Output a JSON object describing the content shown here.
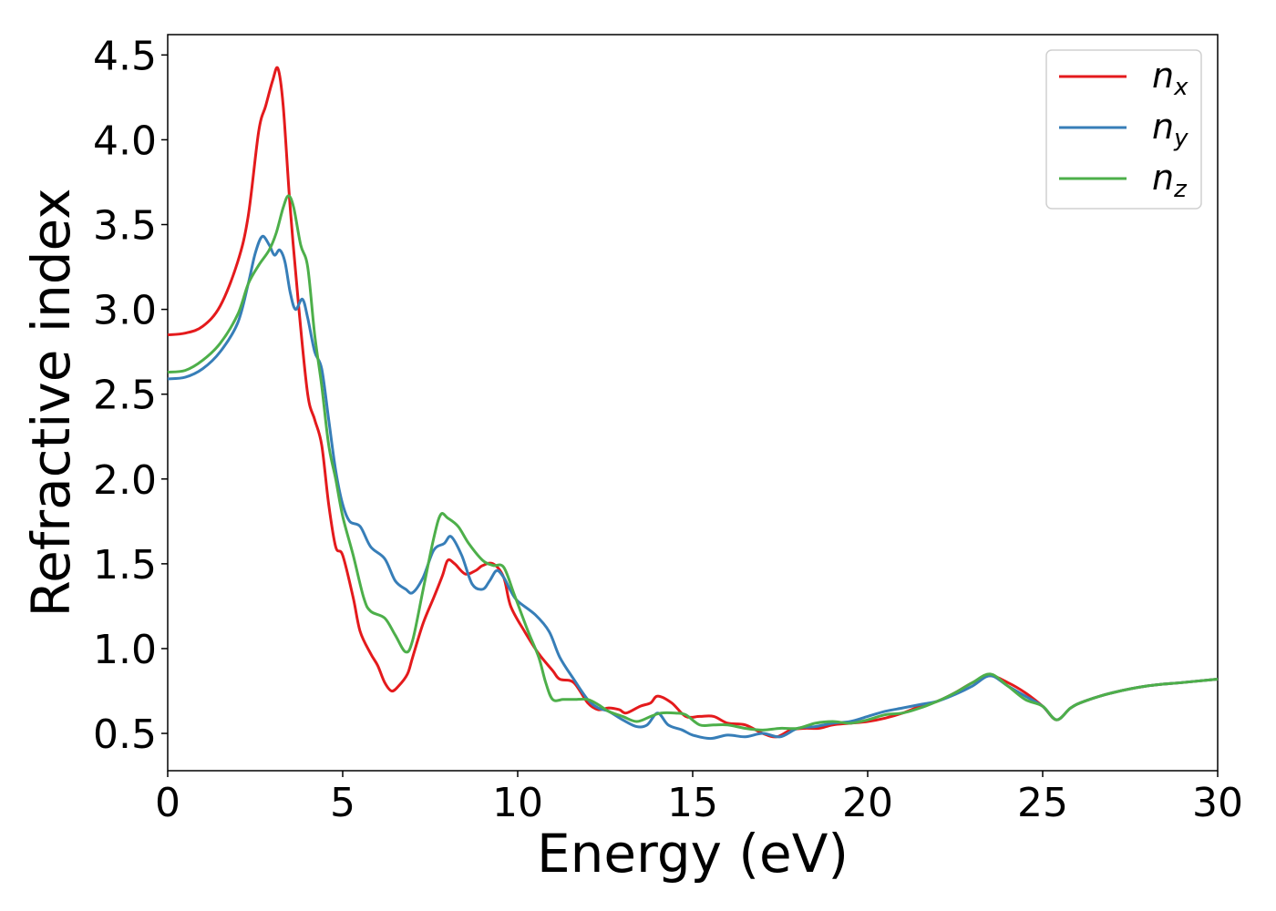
{
  "chart_data": {
    "type": "line",
    "xlabel": "Energy (eV)",
    "ylabel": "Refractive index",
    "xlim": [
      0,
      30
    ],
    "ylim": [
      0.28,
      4.62
    ],
    "xticks": [
      0,
      5,
      10,
      15,
      20,
      25,
      30
    ],
    "xtick_labels": [
      "0",
      "5",
      "10",
      "15",
      "20",
      "25",
      "30"
    ],
    "yticks": [
      0.5,
      1.0,
      1.5,
      2.0,
      2.5,
      3.0,
      3.5,
      4.0,
      4.5
    ],
    "ytick_labels": [
      "0.5",
      "1.0",
      "1.5",
      "2.0",
      "2.5",
      "3.0",
      "3.5",
      "4.0",
      "4.5"
    ],
    "grid": false,
    "legend_position": "top-right",
    "series": [
      {
        "name": "n",
        "subscript": "x",
        "color": "#e41a1c",
        "points": [
          [
            0,
            2.85
          ],
          [
            0.5,
            2.86
          ],
          [
            1.0,
            2.9
          ],
          [
            1.5,
            3.02
          ],
          [
            2.0,
            3.28
          ],
          [
            2.3,
            3.55
          ],
          [
            2.6,
            4.05
          ],
          [
            2.8,
            4.2
          ],
          [
            3.0,
            4.35
          ],
          [
            3.15,
            4.42
          ],
          [
            3.3,
            4.2
          ],
          [
            3.5,
            3.6
          ],
          [
            3.75,
            3.0
          ],
          [
            4.0,
            2.5
          ],
          [
            4.2,
            2.35
          ],
          [
            4.4,
            2.2
          ],
          [
            4.6,
            1.85
          ],
          [
            4.8,
            1.6
          ],
          [
            5.0,
            1.55
          ],
          [
            5.3,
            1.3
          ],
          [
            5.5,
            1.1
          ],
          [
            5.8,
            0.97
          ],
          [
            6.0,
            0.9
          ],
          [
            6.2,
            0.8
          ],
          [
            6.4,
            0.75
          ],
          [
            6.6,
            0.78
          ],
          [
            6.85,
            0.85
          ],
          [
            7.0,
            0.95
          ],
          [
            7.3,
            1.15
          ],
          [
            7.6,
            1.3
          ],
          [
            7.85,
            1.43
          ],
          [
            8.0,
            1.52
          ],
          [
            8.2,
            1.5
          ],
          [
            8.5,
            1.44
          ],
          [
            8.8,
            1.46
          ],
          [
            9.0,
            1.49
          ],
          [
            9.3,
            1.5
          ],
          [
            9.6,
            1.42
          ],
          [
            9.8,
            1.25
          ],
          [
            10.2,
            1.1
          ],
          [
            10.6,
            0.97
          ],
          [
            11.0,
            0.87
          ],
          [
            11.2,
            0.82
          ],
          [
            11.6,
            0.8
          ],
          [
            12.0,
            0.68
          ],
          [
            12.3,
            0.64
          ],
          [
            12.6,
            0.65
          ],
          [
            12.9,
            0.64
          ],
          [
            13.1,
            0.62
          ],
          [
            13.5,
            0.66
          ],
          [
            13.8,
            0.68
          ],
          [
            14.0,
            0.72
          ],
          [
            14.4,
            0.68
          ],
          [
            14.8,
            0.6
          ],
          [
            15.2,
            0.6
          ],
          [
            15.6,
            0.6
          ],
          [
            16.0,
            0.56
          ],
          [
            16.5,
            0.55
          ],
          [
            17.0,
            0.5
          ],
          [
            17.4,
            0.48
          ],
          [
            17.8,
            0.52
          ],
          [
            18.2,
            0.53
          ],
          [
            18.6,
            0.53
          ],
          [
            19.0,
            0.55
          ],
          [
            19.5,
            0.56
          ],
          [
            20.0,
            0.57
          ],
          [
            20.5,
            0.59
          ],
          [
            21.0,
            0.62
          ],
          [
            21.5,
            0.66
          ],
          [
            22.0,
            0.69
          ],
          [
            22.5,
            0.74
          ],
          [
            23.0,
            0.8
          ],
          [
            23.5,
            0.84
          ],
          [
            24.0,
            0.8
          ],
          [
            24.5,
            0.74
          ],
          [
            25.0,
            0.66
          ],
          [
            25.4,
            0.58
          ],
          [
            25.8,
            0.65
          ],
          [
            26.2,
            0.69
          ],
          [
            27.0,
            0.74
          ],
          [
            28.0,
            0.78
          ],
          [
            29.0,
            0.8
          ],
          [
            30.0,
            0.82
          ]
        ]
      },
      {
        "name": "n",
        "subscript": "y",
        "color": "#377eb8",
        "points": [
          [
            0,
            2.59
          ],
          [
            0.5,
            2.6
          ],
          [
            1.0,
            2.65
          ],
          [
            1.5,
            2.75
          ],
          [
            2.0,
            2.92
          ],
          [
            2.3,
            3.15
          ],
          [
            2.5,
            3.33
          ],
          [
            2.7,
            3.43
          ],
          [
            2.9,
            3.38
          ],
          [
            3.05,
            3.32
          ],
          [
            3.2,
            3.35
          ],
          [
            3.35,
            3.28
          ],
          [
            3.5,
            3.1
          ],
          [
            3.65,
            3.0
          ],
          [
            3.85,
            3.06
          ],
          [
            4.0,
            2.95
          ],
          [
            4.2,
            2.75
          ],
          [
            4.4,
            2.65
          ],
          [
            4.6,
            2.35
          ],
          [
            4.8,
            2.05
          ],
          [
            5.0,
            1.85
          ],
          [
            5.2,
            1.75
          ],
          [
            5.5,
            1.72
          ],
          [
            5.8,
            1.6
          ],
          [
            6.2,
            1.53
          ],
          [
            6.5,
            1.4
          ],
          [
            6.8,
            1.35
          ],
          [
            7.0,
            1.33
          ],
          [
            7.3,
            1.42
          ],
          [
            7.6,
            1.58
          ],
          [
            7.9,
            1.62
          ],
          [
            8.1,
            1.66
          ],
          [
            8.4,
            1.55
          ],
          [
            8.7,
            1.38
          ],
          [
            9.0,
            1.35
          ],
          [
            9.2,
            1.4
          ],
          [
            9.4,
            1.46
          ],
          [
            9.6,
            1.42
          ],
          [
            9.8,
            1.34
          ],
          [
            10.0,
            1.28
          ],
          [
            10.5,
            1.2
          ],
          [
            10.9,
            1.1
          ],
          [
            11.2,
            0.95
          ],
          [
            11.6,
            0.82
          ],
          [
            12.0,
            0.7
          ],
          [
            12.3,
            0.65
          ],
          [
            12.6,
            0.63
          ],
          [
            13.0,
            0.58
          ],
          [
            13.4,
            0.54
          ],
          [
            13.7,
            0.55
          ],
          [
            14.0,
            0.62
          ],
          [
            14.3,
            0.55
          ],
          [
            14.7,
            0.52
          ],
          [
            15.0,
            0.49
          ],
          [
            15.5,
            0.47
          ],
          [
            16.0,
            0.49
          ],
          [
            16.5,
            0.48
          ],
          [
            17.0,
            0.5
          ],
          [
            17.5,
            0.48
          ],
          [
            18.0,
            0.53
          ],
          [
            18.5,
            0.54
          ],
          [
            19.0,
            0.56
          ],
          [
            19.5,
            0.57
          ],
          [
            20.0,
            0.6
          ],
          [
            20.5,
            0.63
          ],
          [
            21.0,
            0.65
          ],
          [
            21.5,
            0.67
          ],
          [
            22.0,
            0.69
          ],
          [
            22.5,
            0.73
          ],
          [
            23.0,
            0.78
          ],
          [
            23.5,
            0.84
          ],
          [
            24.0,
            0.78
          ],
          [
            24.5,
            0.72
          ],
          [
            25.0,
            0.66
          ],
          [
            25.4,
            0.58
          ],
          [
            25.8,
            0.65
          ],
          [
            26.2,
            0.69
          ],
          [
            27.0,
            0.74
          ],
          [
            28.0,
            0.78
          ],
          [
            29.0,
            0.8
          ],
          [
            30.0,
            0.82
          ]
        ]
      },
      {
        "name": "n",
        "subscript": "z",
        "color": "#4daf4a",
        "points": [
          [
            0,
            2.63
          ],
          [
            0.5,
            2.64
          ],
          [
            1.0,
            2.7
          ],
          [
            1.5,
            2.8
          ],
          [
            2.0,
            2.97
          ],
          [
            2.3,
            3.15
          ],
          [
            2.6,
            3.26
          ],
          [
            2.9,
            3.35
          ],
          [
            3.1,
            3.45
          ],
          [
            3.3,
            3.6
          ],
          [
            3.45,
            3.67
          ],
          [
            3.6,
            3.6
          ],
          [
            3.8,
            3.38
          ],
          [
            4.0,
            3.25
          ],
          [
            4.2,
            2.85
          ],
          [
            4.4,
            2.55
          ],
          [
            4.6,
            2.2
          ],
          [
            4.8,
            2.0
          ],
          [
            5.0,
            1.78
          ],
          [
            5.3,
            1.55
          ],
          [
            5.6,
            1.3
          ],
          [
            5.8,
            1.22
          ],
          [
            6.2,
            1.18
          ],
          [
            6.5,
            1.08
          ],
          [
            6.8,
            0.98
          ],
          [
            7.0,
            1.05
          ],
          [
            7.3,
            1.35
          ],
          [
            7.6,
            1.65
          ],
          [
            7.8,
            1.79
          ],
          [
            8.0,
            1.77
          ],
          [
            8.3,
            1.72
          ],
          [
            8.6,
            1.62
          ],
          [
            9.0,
            1.52
          ],
          [
            9.3,
            1.49
          ],
          [
            9.6,
            1.48
          ],
          [
            9.9,
            1.32
          ],
          [
            10.3,
            1.1
          ],
          [
            10.6,
            0.95
          ],
          [
            10.8,
            0.8
          ],
          [
            11.0,
            0.7
          ],
          [
            11.3,
            0.7
          ],
          [
            11.6,
            0.7
          ],
          [
            12.0,
            0.7
          ],
          [
            12.3,
            0.67
          ],
          [
            12.6,
            0.63
          ],
          [
            13.0,
            0.6
          ],
          [
            13.4,
            0.57
          ],
          [
            13.8,
            0.6
          ],
          [
            14.1,
            0.62
          ],
          [
            14.5,
            0.62
          ],
          [
            14.8,
            0.61
          ],
          [
            15.2,
            0.55
          ],
          [
            15.6,
            0.55
          ],
          [
            16.0,
            0.55
          ],
          [
            16.5,
            0.53
          ],
          [
            17.0,
            0.52
          ],
          [
            17.5,
            0.53
          ],
          [
            18.0,
            0.53
          ],
          [
            18.5,
            0.56
          ],
          [
            19.0,
            0.57
          ],
          [
            19.5,
            0.56
          ],
          [
            20.0,
            0.58
          ],
          [
            20.5,
            0.61
          ],
          [
            21.0,
            0.62
          ],
          [
            21.5,
            0.65
          ],
          [
            22.0,
            0.69
          ],
          [
            22.5,
            0.74
          ],
          [
            23.0,
            0.8
          ],
          [
            23.5,
            0.85
          ],
          [
            24.0,
            0.78
          ],
          [
            24.5,
            0.7
          ],
          [
            25.0,
            0.66
          ],
          [
            25.4,
            0.58
          ],
          [
            25.8,
            0.65
          ],
          [
            26.2,
            0.69
          ],
          [
            27.0,
            0.74
          ],
          [
            28.0,
            0.78
          ],
          [
            29.0,
            0.8
          ],
          [
            30.0,
            0.82
          ]
        ]
      }
    ]
  }
}
